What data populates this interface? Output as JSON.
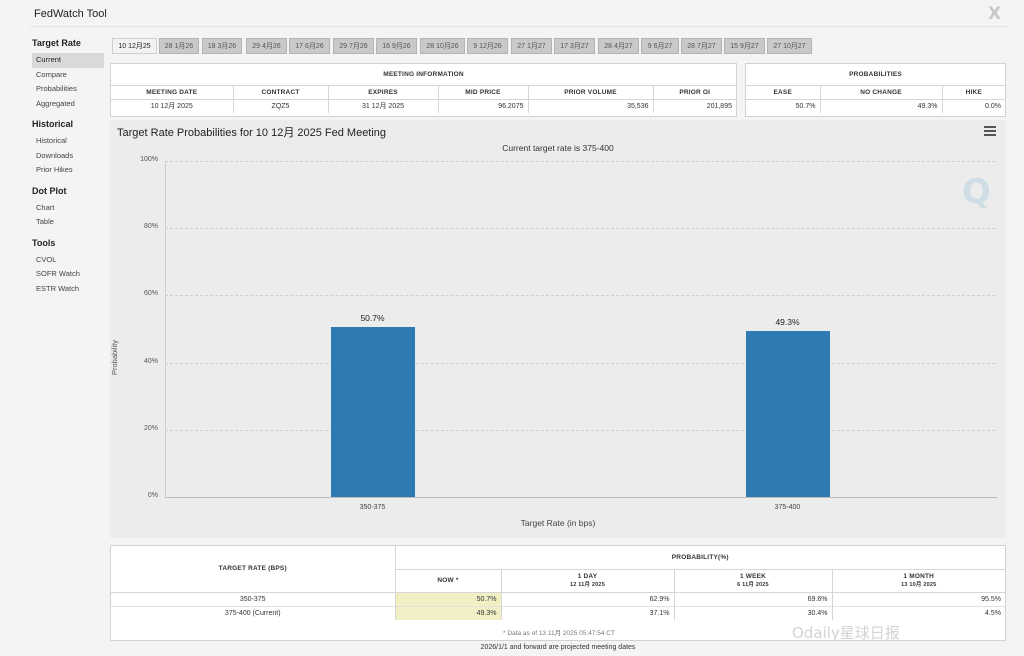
{
  "app": {
    "title": "FedWatch Tool",
    "close_glyph": "X"
  },
  "sidebar": {
    "sections": [
      {
        "title": "Target Rate",
        "items": [
          "Current",
          "Compare",
          "Probabilities",
          "Aggregated"
        ]
      },
      {
        "title": "Historical",
        "items": [
          "Historical",
          "Downloads",
          "Prior Hikes"
        ]
      },
      {
        "title": "Dot Plot",
        "items": [
          "Chart",
          "Table"
        ]
      },
      {
        "title": "Tools",
        "items": [
          "CVOL",
          "SOFR Watch",
          "ESTR Watch"
        ]
      }
    ],
    "active_item": "Current"
  },
  "tabs": [
    "10 12月25",
    "28 1月26",
    "18 3月26",
    "29 4月26",
    "17 6月26",
    "29 7月26",
    "16 9月26",
    "28 10月26",
    "9 12月26",
    "27 1月27",
    "17 3月27",
    "28 4月27",
    "9 6月27",
    "28 7月27",
    "15 9月27",
    "27 10月27"
  ],
  "meeting_info": {
    "heading": "MEETING INFORMATION",
    "headers": [
      "MEETING DATE",
      "CONTRACT",
      "EXPIRES",
      "MID PRICE",
      "PRIOR VOLUME",
      "PRIOR OI"
    ],
    "row": [
      "10 12月 2025",
      "ZQZ5",
      "31 12月 2025",
      "96.2075",
      "35,536",
      "201,895"
    ]
  },
  "probabilities": {
    "heading": "PROBABILITIES",
    "headers": [
      "EASE",
      "NO CHANGE",
      "HIKE"
    ],
    "row": [
      "50.7%",
      "49.3%",
      "0.0%"
    ]
  },
  "chart_data": {
    "type": "bar",
    "title": "Target Rate Probabilities for 10 12月 2025 Fed Meeting",
    "subtitle": "Current target rate is 375-400",
    "xlabel": "Target Rate (in bps)",
    "ylabel": "Probability",
    "categories": [
      "350-375",
      "375-400"
    ],
    "values": [
      50.7,
      49.3
    ],
    "data_labels": [
      "50.7%",
      "49.3%"
    ],
    "ylim": [
      0,
      100
    ],
    "yticks": [
      "0%",
      "20%",
      "40%",
      "60%",
      "80%",
      "100%"
    ],
    "bar_color": "#2e7ab2",
    "grid": true,
    "legend": "none"
  },
  "prob_table": {
    "col1_header": "TARGET RATE (BPS)",
    "group_header": "PROBABILITY(%)",
    "columns": [
      {
        "label": "NOW *",
        "date": ""
      },
      {
        "label": "1 DAY",
        "date": "12 11月 2025"
      },
      {
        "label": "1 WEEK",
        "date": "6 11月 2025"
      },
      {
        "label": "1 MONTH",
        "date": "13 10月 2025"
      }
    ],
    "rows": [
      {
        "rate": "350-375",
        "now": "50.7%",
        "day": "62.9%",
        "week": "69.6%",
        "month": "95.5%"
      },
      {
        "rate": "375-400 (Current)",
        "now": "49.3%",
        "day": "37.1%",
        "week": "30.4%",
        "month": "4.5%"
      }
    ],
    "footnote": "* Data as of 13 11月 2025 05:47:54 CT"
  },
  "footer_note": "2026/1/1 and forward are projected meeting dates",
  "watermark": "Odaily星球日报",
  "logo_text": "Q"
}
